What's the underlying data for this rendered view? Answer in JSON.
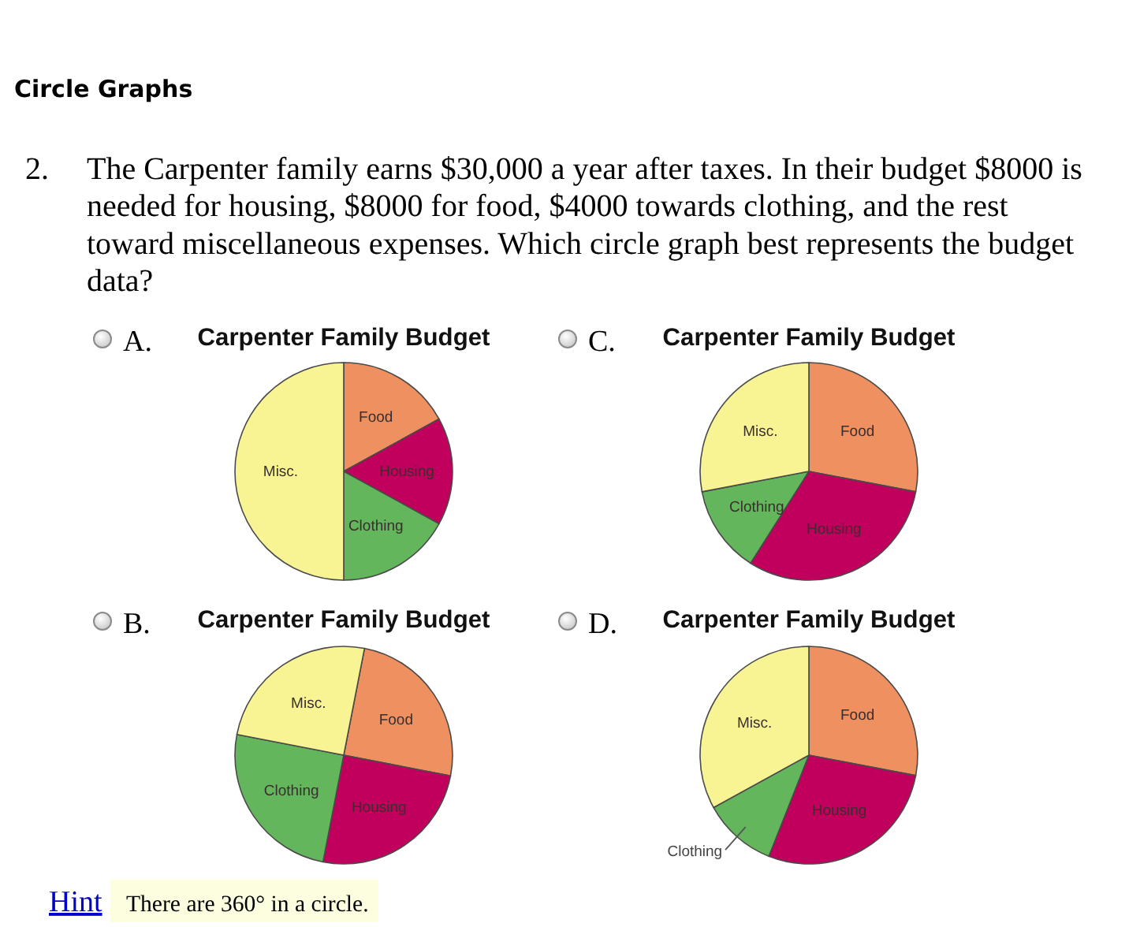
{
  "chart_data": [
    {
      "type": "other",
      "title": "Circle Graphs",
      "annotations": [
        "2.",
        "The Carpenter family earns $30,000 a year after taxes. In their budget $8000 is needed for housing, $8000 for food, $4000 towards clothing, and the rest toward miscellaneous expenses. Which circle graph best represents the budget data?"
      ]
    },
    {
      "type": "pie",
      "title": "Carpenter Family Budget",
      "annotations": [
        "A."
      ],
      "categories": [
        "Food",
        "Housing",
        "Clothing",
        "Misc."
      ],
      "values": [
        17,
        16,
        17,
        50
      ],
      "colors": [
        "#ee9060",
        "#c0005c",
        "#64b65c",
        "#f8f494"
      ]
    },
    {
      "type": "pie",
      "title": "Carpenter Family Budget",
      "annotations": [
        "C."
      ],
      "categories": [
        "Food",
        "Housing",
        "Clothing",
        "Misc."
      ],
      "values": [
        28,
        31,
        13,
        28
      ],
      "colors": [
        "#ee9060",
        "#c0005c",
        "#64b65c",
        "#f8f494"
      ]
    },
    {
      "type": "pie",
      "title": "Carpenter Family Budget",
      "annotations": [
        "B."
      ],
      "categories": [
        "Food",
        "Housing",
        "Clothing",
        "Misc."
      ],
      "values": [
        25,
        25,
        25,
        25
      ],
      "colors": [
        "#ee9060",
        "#c0005c",
        "#64b65c",
        "#f8f494"
      ]
    },
    {
      "type": "pie",
      "title": "Carpenter Family Budget",
      "annotations": [
        "D."
      ],
      "categories": [
        "Food",
        "Housing",
        "Clothing",
        "Misc."
      ],
      "values": [
        28,
        28,
        11,
        33
      ],
      "colors": [
        "#ee9060",
        "#c0005c",
        "#64b65c",
        "#f8f494"
      ]
    },
    {
      "type": "other",
      "annotations": [
        "Hint",
        "There are 360° in a circle."
      ]
    }
  ]
}
